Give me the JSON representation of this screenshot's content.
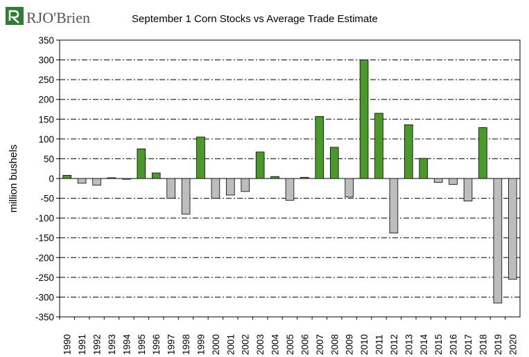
{
  "logo": {
    "text": "RJO'Brien",
    "brand_color": "#2f7d32"
  },
  "chart_data": {
    "type": "bar",
    "title": "September 1 Corn Stocks vs Average Trade Estimate",
    "xlabel": "",
    "ylabel": "million bushels",
    "ylim": [
      -350,
      350
    ],
    "ytick_step": 50,
    "grid": "horizontal dash-dot",
    "legend": "none",
    "colors": {
      "positive": "#4a9a2a",
      "negative": "#bdbdbd"
    },
    "categories": [
      "1990",
      "1991",
      "1992",
      "1993",
      "1994",
      "1995",
      "1996",
      "1997",
      "1998",
      "1999",
      "2000",
      "2001",
      "2002",
      "2003",
      "2004",
      "2005",
      "2006",
      "2007",
      "2008",
      "2009",
      "2010",
      "2011",
      "2012",
      "2013",
      "2014",
      "2015",
      "2016",
      "2017",
      "2018",
      "2019",
      "2020"
    ],
    "values": [
      8,
      -12,
      -17,
      2,
      -2,
      75,
      14,
      -50,
      -90,
      105,
      -50,
      -42,
      -33,
      67,
      5,
      -55,
      3,
      157,
      79,
      -47,
      300,
      165,
      -138,
      136,
      51,
      -10,
      -15,
      -57,
      129,
      -315,
      -255
    ]
  }
}
